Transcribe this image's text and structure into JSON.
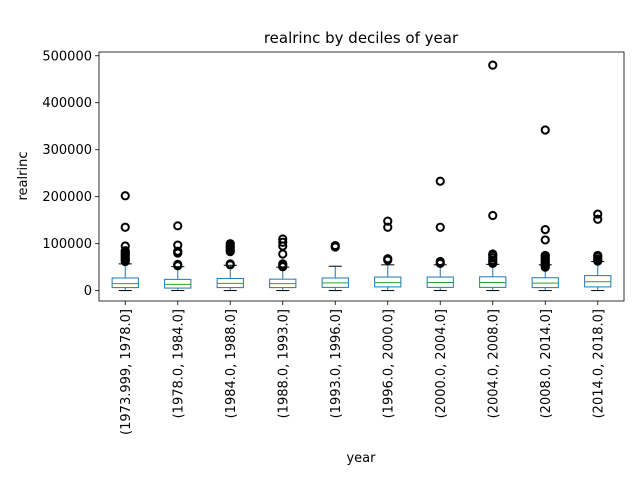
{
  "chart_data": {
    "type": "box",
    "title": "realrinc by deciles of year",
    "xlabel": "year",
    "ylabel": "realrinc",
    "ylim": [
      -22000,
      508000
    ],
    "yticks": [
      0,
      100000,
      200000,
      300000,
      400000,
      500000
    ],
    "ytick_labels": [
      "0",
      "100000",
      "200000",
      "300000",
      "400000",
      "500000"
    ],
    "grid": false,
    "colors": {
      "box": "#1f77b4",
      "median": "#2ca02c",
      "whisker": "#1f77b4",
      "cap": "#000000",
      "flier": "#000000"
    },
    "boxes": [
      {
        "category": "(1973.999, 1978.0]",
        "low": 200,
        "q1": 6500,
        "median": 15000,
        "q3": 27000,
        "high": 57000,
        "fliers": [
          62000,
          65000,
          68000,
          72000,
          76000,
          79000,
          82000,
          85000,
          95000,
          135000,
          202000
        ]
      },
      {
        "category": "(1978.0, 1984.0]",
        "low": 200,
        "q1": 5500,
        "median": 13500,
        "q3": 24000,
        "high": 51000,
        "fliers": [
          53000,
          56000,
          80000,
          84000,
          97000,
          138000
        ]
      },
      {
        "category": "(1984.0, 1988.0]",
        "low": 200,
        "q1": 6500,
        "median": 15500,
        "q3": 26000,
        "high": 54000,
        "fliers": [
          55000,
          57000,
          83000,
          86000,
          90000,
          93000,
          96000,
          100000
        ]
      },
      {
        "category": "(1988.0, 1993.0]",
        "low": 200,
        "q1": 6500,
        "median": 15000,
        "q3": 24500,
        "high": 50000,
        "fliers": [
          51000,
          53000,
          57000,
          78000,
          95000,
          103000,
          110000
        ]
      },
      {
        "category": "(1993.0, 1996.0]",
        "low": 200,
        "q1": 7000,
        "median": 16500,
        "q3": 27000,
        "high": 52000,
        "fliers": [
          93000,
          96000
        ]
      },
      {
        "category": "(1996.0, 2000.0]",
        "low": 200,
        "q1": 8000,
        "median": 17000,
        "q3": 29000,
        "high": 55000,
        "fliers": [
          65000,
          68000,
          135000,
          148000
        ]
      },
      {
        "category": "(2000.0, 2004.0]",
        "low": 200,
        "q1": 7000,
        "median": 17500,
        "q3": 29000,
        "high": 55000,
        "fliers": [
          58000,
          62000,
          135000,
          233000
        ]
      },
      {
        "category": "(2004.0, 2008.0]",
        "low": 200,
        "q1": 7000,
        "median": 17500,
        "q3": 29500,
        "high": 56000,
        "fliers": [
          58000,
          62000,
          65000,
          70000,
          75000,
          78000,
          160000,
          480000
        ]
      },
      {
        "category": "(2008.0, 2014.0]",
        "low": 200,
        "q1": 6500,
        "median": 16000,
        "q3": 27500,
        "high": 55000,
        "fliers": [
          50000,
          53000,
          56000,
          59000,
          62000,
          65000,
          68000,
          72000,
          75000,
          108000,
          130000,
          342000
        ]
      },
      {
        "category": "(2014.0, 2018.0]",
        "low": 200,
        "q1": 8000,
        "median": 19000,
        "q3": 32000,
        "high": 62000,
        "fliers": [
          63000,
          67000,
          72000,
          75000,
          152000,
          163000
        ]
      }
    ]
  }
}
